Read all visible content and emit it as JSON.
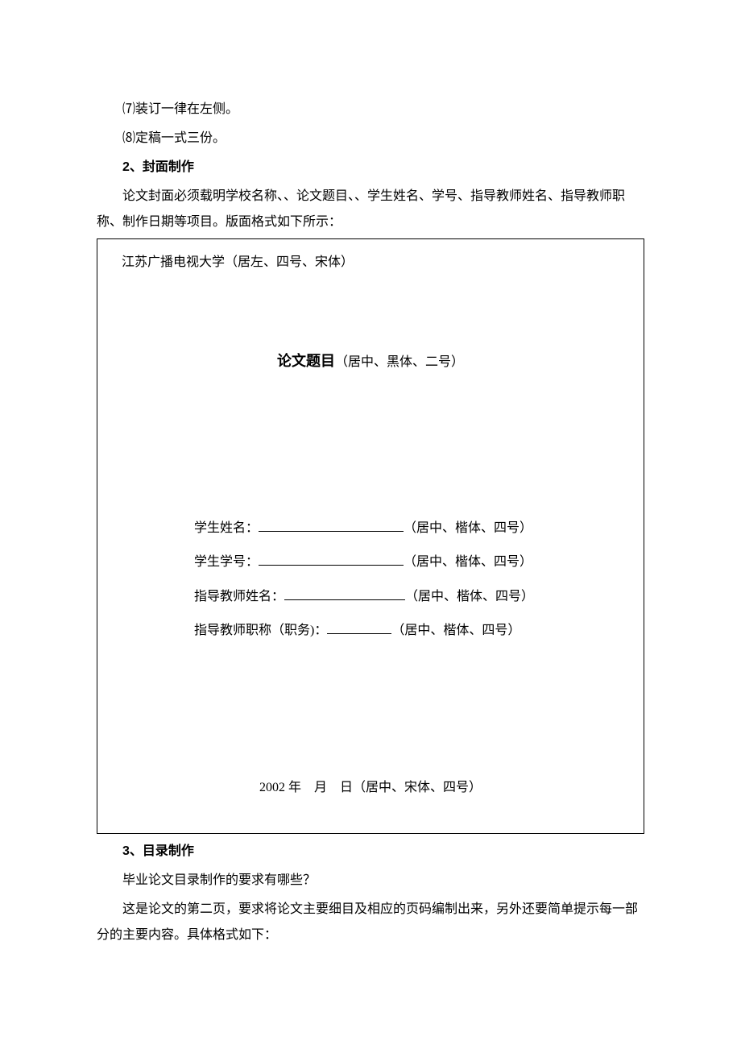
{
  "items": {
    "item7": "⑺装订一律在左侧。",
    "item8": "⑻定稿一式三份。"
  },
  "section2": {
    "heading": "2、封面制作",
    "para1": "论文封面必须载明学校名称、、论文题目、、学生姓名、学号、指导教师姓名、指导教师职称、制作日期等项目。版面格式如下所示："
  },
  "box": {
    "top": "江苏广播电视大学（居左、四号、宋体）",
    "title_bold": "论文题目",
    "title_note": "（居中、黑体、二号）",
    "field_name_label": "学生姓名：",
    "field_name_note": "（居中、楷体、四号）",
    "field_id_label": "学生学号：",
    "field_id_note": "（居中、楷体、四号）",
    "field_advisor_label": "指导教师姓名：",
    "field_advisor_note": "（居中、楷体、四号）",
    "field_title_label": "指导教师职称（职务)：",
    "field_title_note": "（居中、楷体、四号）",
    "date_prefix": "2002 年",
    "date_month": "月",
    "date_day": "日（居中、宋体、四号）"
  },
  "section3": {
    "heading": "3、目录制作",
    "para1": "毕业论文目录制作的要求有哪些？",
    "para2": "这是论文的第二页，要求将论文主要细目及相应的页码编制出来，另外还要简单提示每一部分的主要内容。具体格式如下："
  }
}
